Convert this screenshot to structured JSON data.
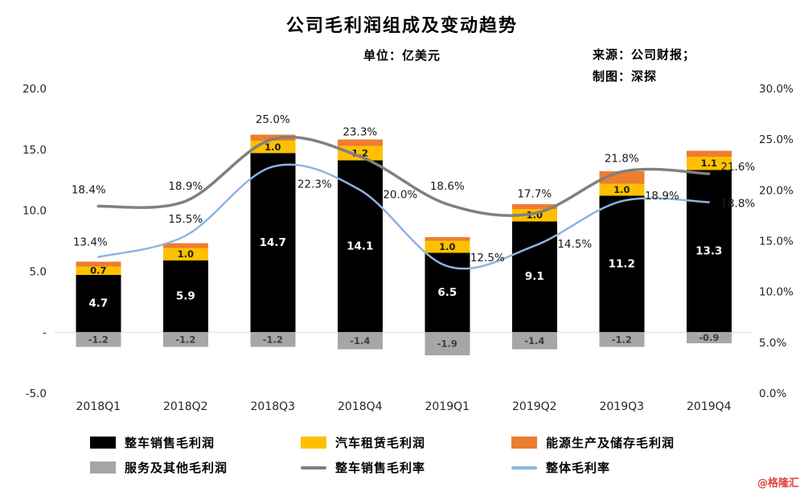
{
  "title": "公司毛利润组成及变动趋势",
  "subtitle": "单位：亿美元",
  "source": {
    "line1": "来源：公司财报；",
    "line2": "制图：深探"
  },
  "watermark": "@格隆汇",
  "chart_data": {
    "type": "combo-stacked-bar-line",
    "categories": [
      "2018Q1",
      "2018Q2",
      "2018Q3",
      "2018Q4",
      "2019Q1",
      "2019Q2",
      "2019Q3",
      "2019Q4"
    ],
    "bar_series": [
      {
        "name": "整车销售毛利润",
        "color": "#000000",
        "label_color": "#ffffff",
        "values": [
          4.7,
          5.9,
          14.7,
          14.1,
          6.5,
          9.1,
          11.2,
          13.3
        ],
        "labels": [
          "4.7",
          "5.9",
          "14.7",
          "14.1",
          "6.5",
          "9.1",
          "11.2",
          "13.3"
        ]
      },
      {
        "name": "汽车租赁毛利润",
        "color": "#FFC000",
        "label_color": "#1a1a1a",
        "values": [
          0.7,
          1.0,
          1.0,
          1.2,
          1.0,
          1.0,
          1.0,
          1.1
        ],
        "labels": [
          "0.7",
          "1.0",
          "1.0",
          "1.2",
          "1.0",
          "1.0",
          "1.0",
          "1.1"
        ]
      },
      {
        "name": "能源生产及储存毛利润",
        "color": "#ED7D31",
        "label_color": null,
        "values": [
          0.4,
          0.4,
          0.5,
          0.5,
          0.3,
          0.4,
          1.0,
          0.5
        ],
        "labels": null
      },
      {
        "name": "服务及其他毛利润",
        "color": "#A6A6A6",
        "label_color": "#3d3d3d",
        "values": [
          -1.2,
          -1.2,
          -1.2,
          -1.4,
          -1.9,
          -1.4,
          -1.2,
          -0.9
        ],
        "labels": [
          "-1.2",
          "-1.2",
          "-1.2",
          "-1.4",
          "-1.9",
          "-1.4",
          "-1.2",
          "-0.9"
        ]
      }
    ],
    "line_series": [
      {
        "name": "整车销售毛利率",
        "color": "#808080",
        "values": [
          18.4,
          18.9,
          25.0,
          23.3,
          18.6,
          17.7,
          21.8,
          21.6
        ],
        "labels": [
          "18.4%",
          "18.9%",
          "25.0%",
          "23.3%",
          "18.6%",
          "17.7%",
          "21.8%",
          "21.6%"
        ]
      },
      {
        "name": "整体毛利率",
        "color": "#8EB4E3",
        "values": [
          13.4,
          15.5,
          22.3,
          20.0,
          12.5,
          14.5,
          18.9,
          18.8
        ],
        "labels": [
          "13.4%",
          "15.5%",
          "22.3%",
          "20.0%",
          "12.5%",
          "14.5%",
          "18.9%",
          "18.8%"
        ]
      }
    ],
    "left_axis": {
      "min": -5,
      "max": 20,
      "tick_values": [
        20,
        15,
        10,
        5,
        0,
        -5
      ],
      "tick_labels": [
        "20.0",
        "15.0",
        "10.0",
        "5.0",
        "-",
        "-5.0"
      ]
    },
    "right_axis": {
      "min": 0,
      "max": 30,
      "tick_values": [
        30,
        25,
        20,
        15,
        10,
        5,
        0
      ],
      "tick_labels": [
        "30.0%",
        "25.0%",
        "20.0%",
        "15.0%",
        "10.0%",
        "5.0%",
        "0.0%"
      ]
    },
    "grid": "zero-line-only",
    "legend_position": "bottom"
  }
}
